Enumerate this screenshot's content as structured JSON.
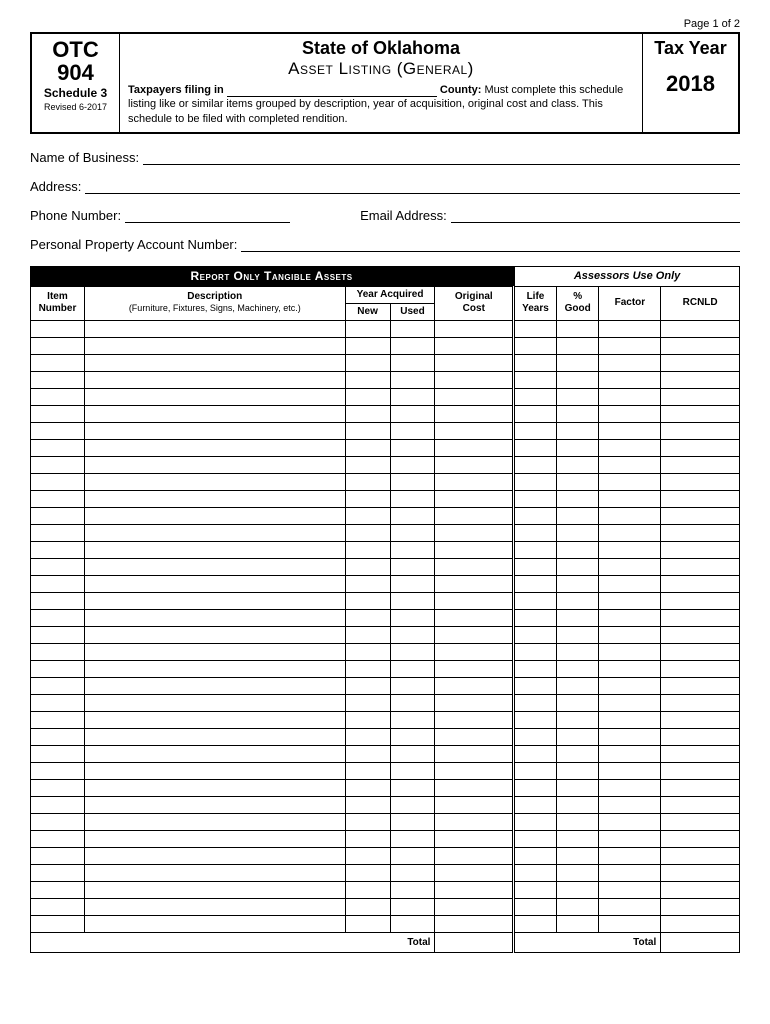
{
  "page_number": "Page 1 of 2",
  "header": {
    "form_code_1": "OTC",
    "form_code_2": "904",
    "schedule": "Schedule 3",
    "revised": "Revised 6-2017",
    "state": "State of Oklahoma",
    "title": "Asset Listing (General)",
    "filing_prefix": "Taxpayers filing in",
    "county_label": "County:",
    "instructions": "Must complete this schedule listing like or similar items grouped by description, year of acquisition, original cost and class. This schedule to be filed with completed rendition.",
    "tax_year_label": "Tax Year",
    "tax_year": "2018"
  },
  "info": {
    "name_label": "Name of Business:",
    "address_label": "Address:",
    "phone_label": "Phone Number:",
    "email_label": "Email Address:",
    "account_label": "Personal Property Account Number:"
  },
  "table": {
    "header_left": "Report Only Tangible Assets",
    "header_right": "Assessors Use Only",
    "col_item_1": "Item",
    "col_item_2": "Number",
    "col_desc_1": "Description",
    "col_desc_2": "(Furniture, Fixtures, Signs, Machinery, etc.)",
    "col_year": "Year Acquired",
    "col_new": "New",
    "col_used": "Used",
    "col_cost_1": "Original",
    "col_cost_2": "Cost",
    "col_life_1": "Life",
    "col_life_2": "Years",
    "col_pct_1": "%",
    "col_pct_2": "Good",
    "col_factor": "Factor",
    "col_rcnld": "RCNLD",
    "total": "Total",
    "row_count": 36
  }
}
